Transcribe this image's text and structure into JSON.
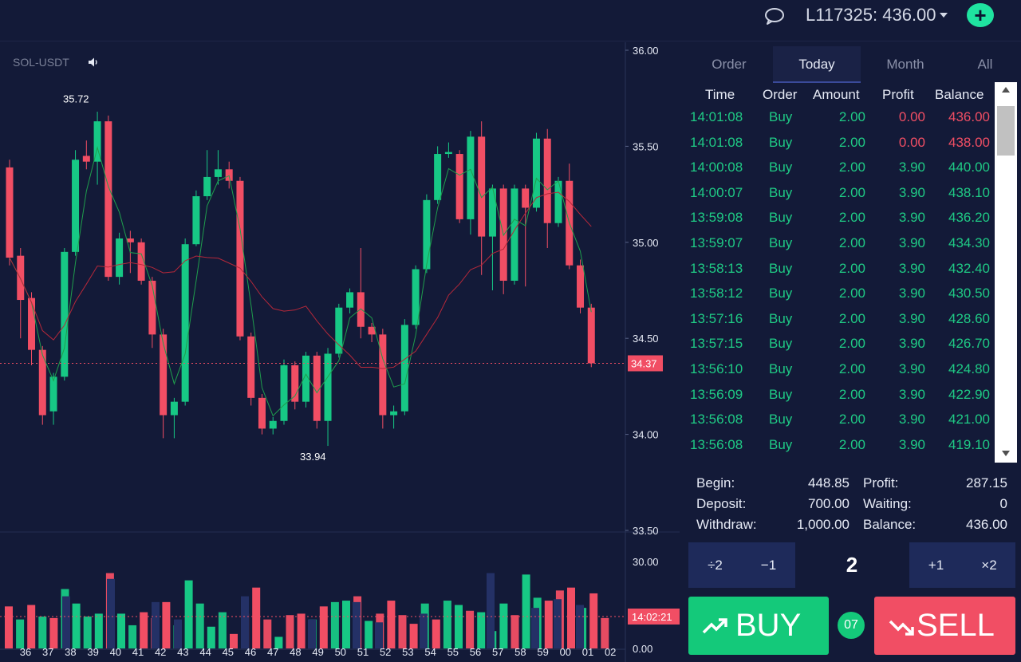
{
  "header": {
    "chat_icon": "chat-bubble-icon",
    "account_label": "L117325: 436.00",
    "add_icon": "plus-icon",
    "add_label": "+"
  },
  "chart": {
    "symbol": "SOL-USDT",
    "sound_icon": "speaker-icon",
    "current_price": "34.37",
    "current_time": "14:02:21",
    "high_label": "35.72",
    "low_label": "33.94"
  },
  "chart_data": {
    "type": "candlestick",
    "price_axis": {
      "ticks": [
        "36.00",
        "35.50",
        "35.00",
        "34.50",
        "34.00",
        "33.50"
      ],
      "range": [
        33.5,
        36.0
      ]
    },
    "volume_axis": {
      "ticks": [
        "30.00",
        "0.00"
      ],
      "range": [
        0,
        30
      ]
    },
    "x_ticks": [
      "36",
      "37",
      "38",
      "39",
      "40",
      "41",
      "42",
      "43",
      "44",
      "45",
      "46",
      "47",
      "48",
      "49",
      "50",
      "51",
      "52",
      "53",
      "54",
      "55",
      "56",
      "57",
      "58",
      "59",
      "00",
      "01",
      "02"
    ],
    "candles": [
      {
        "o": 35.39,
        "c": 34.92,
        "h": 35.43,
        "l": 34.88
      },
      {
        "o": 34.93,
        "c": 34.7,
        "h": 34.97,
        "l": 34.5
      },
      {
        "o": 34.71,
        "c": 34.44,
        "h": 34.74,
        "l": 34.36
      },
      {
        "o": 34.44,
        "c": 34.1,
        "h": 34.46,
        "l": 34.05
      },
      {
        "o": 34.12,
        "c": 34.3,
        "h": 34.32,
        "l": 34.05
      },
      {
        "o": 34.3,
        "c": 34.95,
        "h": 34.97,
        "l": 34.28
      },
      {
        "o": 34.95,
        "c": 35.43,
        "h": 35.48,
        "l": 34.93
      },
      {
        "o": 35.45,
        "c": 35.42,
        "h": 35.53,
        "l": 35.38
      },
      {
        "o": 35.42,
        "c": 35.63,
        "h": 35.68,
        "l": 35.3
      },
      {
        "o": 35.63,
        "c": 34.82,
        "h": 35.66,
        "l": 34.8
      },
      {
        "o": 34.82,
        "c": 35.02,
        "h": 35.05,
        "l": 34.78
      },
      {
        "o": 35.02,
        "c": 35.0,
        "h": 35.06,
        "l": 34.84
      },
      {
        "o": 35.0,
        "c": 34.8,
        "h": 35.02,
        "l": 34.78
      },
      {
        "o": 34.8,
        "c": 34.52,
        "h": 34.82,
        "l": 34.45
      },
      {
        "o": 34.52,
        "c": 34.1,
        "h": 34.55,
        "l": 33.98
      },
      {
        "o": 34.1,
        "c": 34.17,
        "h": 34.19,
        "l": 33.98
      },
      {
        "o": 34.17,
        "c": 34.99,
        "h": 35.02,
        "l": 34.15
      },
      {
        "o": 34.99,
        "c": 35.24,
        "h": 35.27,
        "l": 34.98
      },
      {
        "o": 35.24,
        "c": 35.34,
        "h": 35.48,
        "l": 35.22
      },
      {
        "o": 35.34,
        "c": 35.38,
        "h": 35.48,
        "l": 35.3
      },
      {
        "o": 35.38,
        "c": 35.32,
        "h": 35.42,
        "l": 35.28
      },
      {
        "o": 35.32,
        "c": 34.51,
        "h": 35.34,
        "l": 34.49
      },
      {
        "o": 34.51,
        "c": 34.19,
        "h": 34.53,
        "l": 34.15
      },
      {
        "o": 34.19,
        "c": 34.03,
        "h": 34.21,
        "l": 34.0
      },
      {
        "o": 34.03,
        "c": 34.07,
        "h": 34.09,
        "l": 34.0
      },
      {
        "o": 34.07,
        "c": 34.36,
        "h": 34.39,
        "l": 34.05
      },
      {
        "o": 34.36,
        "c": 34.17,
        "h": 34.38,
        "l": 34.13
      },
      {
        "o": 34.17,
        "c": 34.41,
        "h": 34.43,
        "l": 34.14
      },
      {
        "o": 34.41,
        "c": 34.07,
        "h": 34.43,
        "l": 34.03
      },
      {
        "o": 34.07,
        "c": 34.42,
        "h": 34.45,
        "l": 33.94
      },
      {
        "o": 34.42,
        "c": 34.66,
        "h": 34.68,
        "l": 34.4
      },
      {
        "o": 34.66,
        "c": 34.74,
        "h": 34.76,
        "l": 34.63
      },
      {
        "o": 34.74,
        "c": 34.56,
        "h": 34.97,
        "l": 34.5
      },
      {
        "o": 34.56,
        "c": 34.52,
        "h": 34.58,
        "l": 34.48
      },
      {
        "o": 34.52,
        "c": 34.1,
        "h": 34.55,
        "l": 34.03
      },
      {
        "o": 34.1,
        "c": 34.12,
        "h": 34.15,
        "l": 34.03
      },
      {
        "o": 34.12,
        "c": 34.57,
        "h": 34.6,
        "l": 34.1
      },
      {
        "o": 34.57,
        "c": 34.86,
        "h": 34.88,
        "l": 34.55
      },
      {
        "o": 34.86,
        "c": 35.22,
        "h": 35.25,
        "l": 34.84
      },
      {
        "o": 35.22,
        "c": 35.46,
        "h": 35.5,
        "l": 35.2
      },
      {
        "o": 35.46,
        "c": 35.47,
        "h": 35.52,
        "l": 35.44
      },
      {
        "o": 35.46,
        "c": 35.12,
        "h": 35.48,
        "l": 35.1
      },
      {
        "o": 35.12,
        "c": 35.55,
        "h": 35.58,
        "l": 35.04
      },
      {
        "o": 35.55,
        "c": 35.03,
        "h": 35.63,
        "l": 34.83
      },
      {
        "o": 35.03,
        "c": 35.28,
        "h": 35.3,
        "l": 34.75
      },
      {
        "o": 35.28,
        "c": 34.8,
        "h": 35.3,
        "l": 34.73
      },
      {
        "o": 34.8,
        "c": 35.28,
        "h": 35.3,
        "l": 34.78
      },
      {
        "o": 35.28,
        "c": 35.18,
        "h": 35.3,
        "l": 34.77
      },
      {
        "o": 35.18,
        "c": 35.54,
        "h": 35.57,
        "l": 35.16
      },
      {
        "o": 35.54,
        "c": 35.1,
        "h": 35.59,
        "l": 34.97
      },
      {
        "o": 35.1,
        "c": 35.32,
        "h": 35.34,
        "l": 35.08
      },
      {
        "o": 35.32,
        "c": 34.88,
        "h": 35.41,
        "l": 34.86
      },
      {
        "o": 34.88,
        "c": 34.66,
        "h": 34.91,
        "l": 34.63
      },
      {
        "o": 34.66,
        "c": 34.37,
        "h": 34.68,
        "l": 34.35
      }
    ],
    "volumes": [
      {
        "v": 14.5,
        "dir": "down"
      },
      {
        "v": 10.0,
        "dir": "up"
      },
      {
        "v": 15.0,
        "dir": "down"
      },
      {
        "v": 11.0,
        "dir": "up"
      },
      {
        "v": 10.5,
        "dir": "down"
      },
      {
        "v": 20.5,
        "dir": "up"
      },
      {
        "v": 15.5,
        "dir": "up"
      },
      {
        "v": 11.0,
        "dir": "up"
      },
      {
        "v": 12.0,
        "dir": "up"
      },
      {
        "v": 26.0,
        "dir": "down"
      },
      {
        "v": 12.0,
        "dir": "up"
      },
      {
        "v": 8.0,
        "dir": "up"
      },
      {
        "v": 12.5,
        "dir": "down"
      },
      {
        "v": 10.5,
        "dir": "down"
      },
      {
        "v": 16.0,
        "dir": "down"
      },
      {
        "v": 8.0,
        "dir": "up"
      },
      {
        "v": 23.5,
        "dir": "up"
      },
      {
        "v": 15.5,
        "dir": "up"
      },
      {
        "v": 7.5,
        "dir": "up"
      },
      {
        "v": 12.5,
        "dir": "up"
      },
      {
        "v": 5.0,
        "dir": "down"
      },
      {
        "v": 12.0,
        "dir": "down"
      },
      {
        "v": 21.0,
        "dir": "down"
      },
      {
        "v": 10.0,
        "dir": "down"
      },
      {
        "v": 4.0,
        "dir": "up"
      },
      {
        "v": 11.5,
        "dir": "down"
      },
      {
        "v": 12.0,
        "dir": "down"
      },
      {
        "v": 10.0,
        "dir": "up"
      },
      {
        "v": 14.5,
        "dir": "down"
      },
      {
        "v": 16.0,
        "dir": "up"
      },
      {
        "v": 16.5,
        "dir": "up"
      },
      {
        "v": 18.0,
        "dir": "down"
      },
      {
        "v": 9.5,
        "dir": "up"
      },
      {
        "v": 12.0,
        "dir": "down"
      },
      {
        "v": 16.5,
        "dir": "down"
      },
      {
        "v": 11.5,
        "dir": "down"
      },
      {
        "v": 8.5,
        "dir": "down"
      },
      {
        "v": 15.5,
        "dir": "up"
      },
      {
        "v": 10.0,
        "dir": "down"
      },
      {
        "v": 16.5,
        "dir": "up"
      },
      {
        "v": 15.0,
        "dir": "up"
      },
      {
        "v": 13.0,
        "dir": "down"
      },
      {
        "v": 12.5,
        "dir": "up"
      },
      {
        "v": 6.0,
        "dir": "up"
      },
      {
        "v": 15.5,
        "dir": "up"
      },
      {
        "v": 11.5,
        "dir": "down"
      },
      {
        "v": 25.5,
        "dir": "up"
      },
      {
        "v": 17.5,
        "dir": "up"
      },
      {
        "v": 16.5,
        "dir": "down"
      },
      {
        "v": 20.0,
        "dir": "down"
      },
      {
        "v": 21.0,
        "dir": "down"
      },
      {
        "v": 14.0,
        "dir": "up"
      },
      {
        "v": 19.0,
        "dir": "down"
      },
      {
        "v": 10.5,
        "dir": "down"
      }
    ],
    "colors": {
      "up": "#17c885",
      "down": "#f14e64",
      "volume_bg": "#243166",
      "ma_fast": "#1f9e4d",
      "ma_slow": "#b5283a"
    }
  },
  "panel": {
    "tabs": [
      "Order",
      "Today",
      "Month",
      "All"
    ],
    "active_tab": "Today",
    "columns": [
      "Time",
      "Order",
      "Amount",
      "Profit",
      "Balance"
    ],
    "rows": [
      {
        "time": "14:01:08",
        "order": "Buy",
        "amount": "2.00",
        "profit": "0.00",
        "balance": "436.00",
        "result": "loss"
      },
      {
        "time": "14:01:08",
        "order": "Buy",
        "amount": "2.00",
        "profit": "0.00",
        "balance": "438.00",
        "result": "loss"
      },
      {
        "time": "14:00:08",
        "order": "Buy",
        "amount": "2.00",
        "profit": "3.90",
        "balance": "440.00",
        "result": "win"
      },
      {
        "time": "14:00:07",
        "order": "Buy",
        "amount": "2.00",
        "profit": "3.90",
        "balance": "438.10",
        "result": "win"
      },
      {
        "time": "13:59:08",
        "order": "Buy",
        "amount": "2.00",
        "profit": "3.90",
        "balance": "436.20",
        "result": "win"
      },
      {
        "time": "13:59:07",
        "order": "Buy",
        "amount": "2.00",
        "profit": "3.90",
        "balance": "434.30",
        "result": "win"
      },
      {
        "time": "13:58:13",
        "order": "Buy",
        "amount": "2.00",
        "profit": "3.90",
        "balance": "432.40",
        "result": "win"
      },
      {
        "time": "13:58:12",
        "order": "Buy",
        "amount": "2.00",
        "profit": "3.90",
        "balance": "430.50",
        "result": "win"
      },
      {
        "time": "13:57:16",
        "order": "Buy",
        "amount": "2.00",
        "profit": "3.90",
        "balance": "428.60",
        "result": "win"
      },
      {
        "time": "13:57:15",
        "order": "Buy",
        "amount": "2.00",
        "profit": "3.90",
        "balance": "426.70",
        "result": "win"
      },
      {
        "time": "13:56:10",
        "order": "Buy",
        "amount": "2.00",
        "profit": "3.90",
        "balance": "424.80",
        "result": "win"
      },
      {
        "time": "13:56:09",
        "order": "Buy",
        "amount": "2.00",
        "profit": "3.90",
        "balance": "422.90",
        "result": "win"
      },
      {
        "time": "13:56:08",
        "order": "Buy",
        "amount": "2.00",
        "profit": "3.90",
        "balance": "421.00",
        "result": "win"
      },
      {
        "time": "13:56:08",
        "order": "Buy",
        "amount": "2.00",
        "profit": "3.90",
        "balance": "419.10",
        "result": "win"
      }
    ],
    "summary": {
      "begin_label": "Begin:",
      "begin_value": "448.85",
      "deposit_label": "Deposit:",
      "deposit_value": "700.00",
      "withdraw_label": "Withdraw:",
      "withdraw_value": "1,000.00",
      "profit_label": "Profit:",
      "profit_value": "287.15",
      "waiting_label": "Waiting:",
      "waiting_value": "0",
      "balance_label": "Balance:",
      "balance_value": "436.00"
    },
    "amount_controls": {
      "div2": "÷2",
      "minus1": "−1",
      "value": "2",
      "plus1": "+1",
      "times2": "×2"
    },
    "buy_label": "BUY",
    "buy_icon": "trending-up-icon",
    "sell_label": "SELL",
    "sell_icon": "trending-down-icon",
    "timer": "07"
  }
}
